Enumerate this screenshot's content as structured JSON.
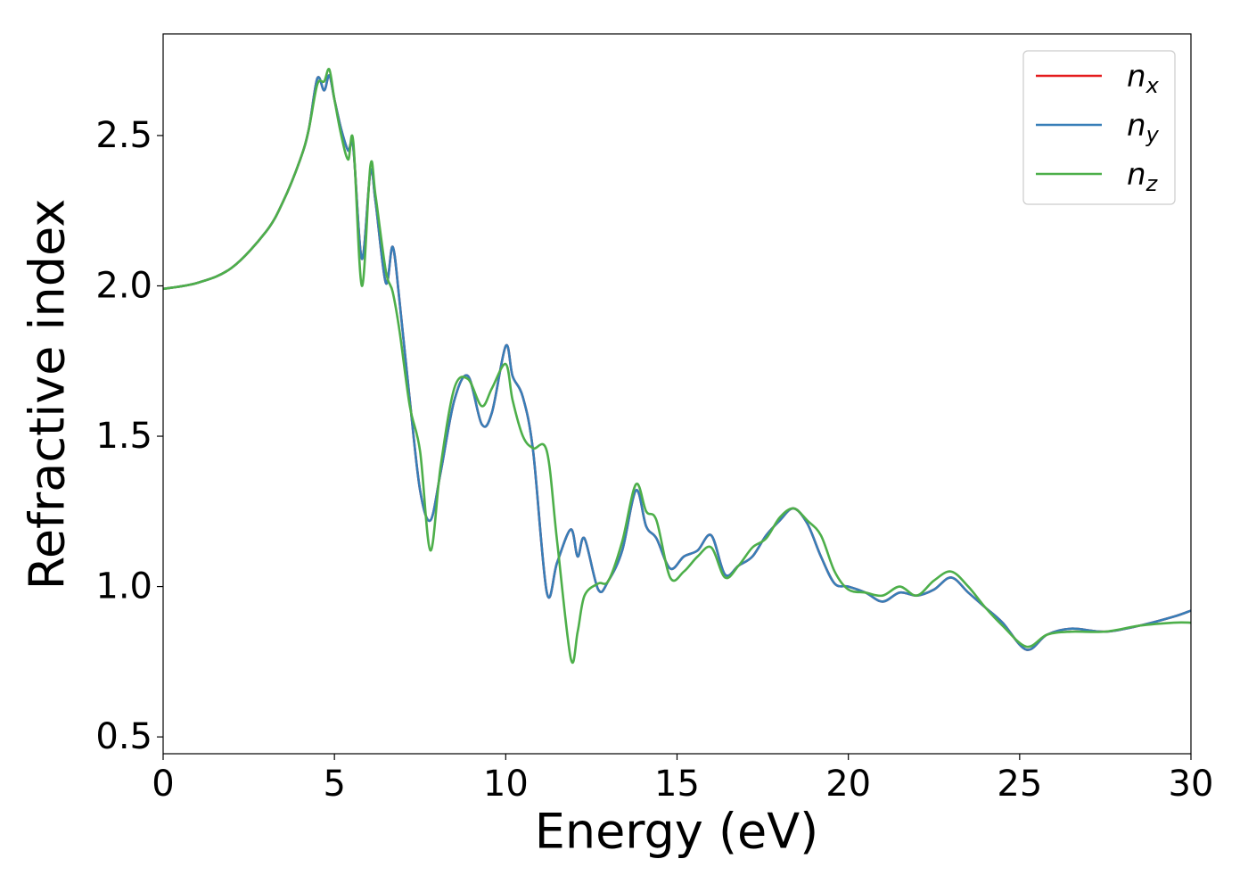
{
  "chart_data": {
    "type": "line",
    "xlabel": "Energy (eV)",
    "ylabel": "Refractive index",
    "x": [
      0,
      1,
      2,
      3,
      3.5,
      4,
      4.25,
      4.5,
      4.7,
      4.85,
      5.0,
      5.2,
      5.4,
      5.55,
      5.8,
      6.05,
      6.2,
      6.5,
      6.7,
      6.9,
      7.2,
      7.5,
      7.8,
      8.1,
      8.5,
      8.9,
      9.3,
      9.6,
      10.0,
      10.2,
      10.5,
      10.8,
      11.2,
      11.5,
      11.9,
      12.1,
      12.3,
      12.7,
      13.0,
      13.4,
      13.8,
      14.1,
      14.4,
      14.8,
      15.2,
      15.6,
      16.0,
      16.4,
      16.8,
      17.2,
      17.6,
      18.0,
      18.4,
      18.8,
      19.2,
      19.6,
      20.0,
      20.5,
      21.0,
      21.5,
      22.0,
      22.5,
      23.0,
      23.5,
      24.0,
      24.5,
      25.2,
      25.8,
      26.5,
      27.5,
      28.5,
      29.5,
      30.0
    ],
    "series": [
      {
        "name": "nx",
        "color": "#e41a1c",
        "values": [
          1.99,
          2.01,
          2.06,
          2.18,
          2.28,
          2.42,
          2.52,
          2.69,
          2.65,
          2.7,
          2.62,
          2.52,
          2.45,
          2.46,
          2.09,
          2.38,
          2.28,
          2.01,
          2.13,
          1.95,
          1.62,
          1.32,
          1.22,
          1.38,
          1.62,
          1.7,
          1.54,
          1.58,
          1.8,
          1.7,
          1.63,
          1.45,
          0.98,
          1.08,
          1.19,
          1.1,
          1.16,
          0.99,
          1.02,
          1.12,
          1.32,
          1.2,
          1.16,
          1.06,
          1.1,
          1.12,
          1.17,
          1.04,
          1.07,
          1.1,
          1.17,
          1.22,
          1.26,
          1.21,
          1.1,
          1.01,
          1.0,
          0.98,
          0.95,
          0.98,
          0.97,
          0.99,
          1.03,
          0.98,
          0.93,
          0.88,
          0.79,
          0.84,
          0.86,
          0.85,
          0.87,
          0.9,
          0.92
        ]
      },
      {
        "name": "ny",
        "color": "#377eb8",
        "values": [
          1.99,
          2.01,
          2.06,
          2.18,
          2.28,
          2.42,
          2.52,
          2.69,
          2.65,
          2.7,
          2.62,
          2.52,
          2.45,
          2.46,
          2.09,
          2.38,
          2.28,
          2.01,
          2.13,
          1.95,
          1.62,
          1.32,
          1.22,
          1.38,
          1.62,
          1.7,
          1.54,
          1.58,
          1.8,
          1.7,
          1.63,
          1.45,
          0.98,
          1.08,
          1.19,
          1.1,
          1.16,
          0.99,
          1.02,
          1.12,
          1.32,
          1.2,
          1.16,
          1.06,
          1.1,
          1.12,
          1.17,
          1.04,
          1.07,
          1.1,
          1.17,
          1.22,
          1.26,
          1.21,
          1.1,
          1.01,
          1.0,
          0.98,
          0.95,
          0.98,
          0.97,
          0.99,
          1.03,
          0.98,
          0.93,
          0.88,
          0.79,
          0.84,
          0.86,
          0.85,
          0.87,
          0.9,
          0.92
        ]
      },
      {
        "name": "nz",
        "color": "#4daf4a",
        "values": [
          1.99,
          2.01,
          2.06,
          2.18,
          2.28,
          2.42,
          2.52,
          2.67,
          2.68,
          2.72,
          2.62,
          2.5,
          2.42,
          2.48,
          2.0,
          2.4,
          2.3,
          2.05,
          1.98,
          1.85,
          1.6,
          1.45,
          1.12,
          1.4,
          1.66,
          1.69,
          1.6,
          1.66,
          1.74,
          1.62,
          1.5,
          1.46,
          1.45,
          1.15,
          0.76,
          0.85,
          0.97,
          1.01,
          1.02,
          1.15,
          1.34,
          1.25,
          1.22,
          1.03,
          1.05,
          1.1,
          1.13,
          1.03,
          1.07,
          1.13,
          1.16,
          1.23,
          1.26,
          1.22,
          1.17,
          1.05,
          0.99,
          0.98,
          0.97,
          1.0,
          0.97,
          1.02,
          1.05,
          1.0,
          0.93,
          0.87,
          0.8,
          0.84,
          0.85,
          0.85,
          0.87,
          0.88,
          0.88
        ]
      }
    ],
    "xlim": [
      0,
      30
    ],
    "xticks": [
      0,
      5,
      10,
      15,
      20,
      25,
      30
    ],
    "ylim": [
      0.444,
      2.838
    ],
    "yticks": [
      0.5,
      {
        "value": 1,
        "label": "1.0"
      },
      1.5,
      {
        "value": 2,
        "label": "2.0"
      },
      2.5
    ],
    "grid": false,
    "legend": "upper right"
  }
}
